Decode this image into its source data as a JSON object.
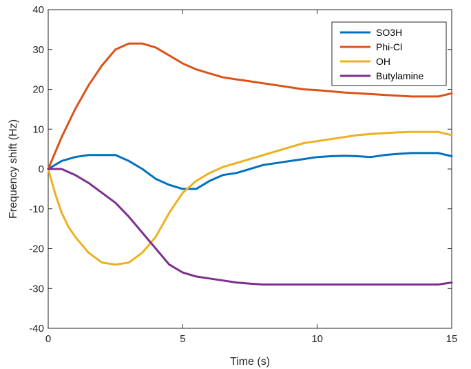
{
  "chart_data": {
    "type": "line",
    "title": "",
    "xlabel": "Time (s)",
    "ylabel": "Frequency shift (Hz)",
    "xlim": [
      0,
      15
    ],
    "ylim": [
      -40,
      40
    ],
    "xticks": [
      0,
      5,
      10,
      15
    ],
    "xtick_labels": [
      "0",
      "5",
      "10",
      "15"
    ],
    "yticks": [
      -40,
      -30,
      -20,
      -10,
      0,
      10,
      20,
      30,
      40
    ],
    "ytick_labels": [
      "-40",
      "-30",
      "-20",
      "-10",
      "0",
      "10",
      "20",
      "30",
      "40"
    ],
    "grid": false,
    "legend_position": "top-right",
    "series": [
      {
        "name": "SO3H",
        "color": "#0072BD",
        "x": [
          0,
          0.5,
          1,
          1.5,
          2,
          2.5,
          3,
          3.5,
          4,
          4.5,
          5,
          5.5,
          6,
          6.5,
          7,
          7.5,
          8,
          8.5,
          9,
          9.5,
          10,
          10.5,
          11,
          11.5,
          12,
          12.5,
          13,
          13.5,
          14,
          14.5,
          15
        ],
        "y": [
          0,
          2,
          3,
          3.5,
          3.5,
          3.5,
          2,
          0,
          -2.5,
          -4,
          -5,
          -5,
          -3,
          -1.5,
          -1,
          0,
          1,
          1.5,
          2,
          2.5,
          3,
          3.2,
          3.3,
          3.2,
          3,
          3.5,
          3.8,
          4,
          4,
          4,
          3.2
        ]
      },
      {
        "name": "Phi-Cl",
        "color": "#D95319",
        "x": [
          0,
          0.5,
          1,
          1.5,
          2,
          2.5,
          3,
          3.5,
          4,
          4.5,
          5,
          5.5,
          6,
          6.5,
          7,
          7.5,
          8,
          8.5,
          9,
          9.5,
          10,
          10.5,
          11,
          11.5,
          12,
          12.5,
          13,
          13.5,
          14,
          14.5,
          15
        ],
        "y": [
          0,
          8,
          15,
          21,
          26,
          30,
          31.5,
          31.5,
          30.5,
          28.5,
          26.5,
          25,
          24,
          23,
          22.5,
          22,
          21.5,
          21,
          20.5,
          20,
          19.8,
          19.5,
          19.2,
          19,
          18.8,
          18.6,
          18.4,
          18.2,
          18.2,
          18.2,
          19
        ]
      },
      {
        "name": "OH",
        "color": "#EDB120",
        "x": [
          0,
          0.25,
          0.5,
          0.75,
          1,
          1.5,
          2,
          2.5,
          3,
          3.5,
          4,
          4.5,
          5,
          5.5,
          6,
          6.5,
          7,
          7.5,
          8,
          8.5,
          9,
          9.5,
          10,
          10.5,
          11,
          11.5,
          12,
          12.5,
          13,
          13.5,
          14,
          14.5,
          15
        ],
        "y": [
          0,
          -6,
          -11,
          -14.5,
          -17,
          -21,
          -23.5,
          -24,
          -23.5,
          -21,
          -17,
          -11,
          -6,
          -3,
          -1,
          0.5,
          1.5,
          2.5,
          3.5,
          4.5,
          5.5,
          6.5,
          7,
          7.5,
          8,
          8.5,
          8.8,
          9,
          9.2,
          9.3,
          9.3,
          9.3,
          8.5
        ]
      },
      {
        "name": "Butylamine",
        "color": "#7E2F8E",
        "x": [
          0,
          0.5,
          1,
          1.5,
          2,
          2.5,
          3,
          3.5,
          4,
          4.5,
          5,
          5.5,
          6,
          6.5,
          7,
          7.5,
          8,
          8.5,
          9,
          9.5,
          10,
          10.5,
          11,
          11.5,
          12,
          12.5,
          13,
          13.5,
          14,
          14.5,
          15
        ],
        "y": [
          0,
          0,
          -1.5,
          -3.5,
          -6,
          -8.5,
          -12,
          -16,
          -20,
          -24,
          -26,
          -27,
          -27.5,
          -28,
          -28.5,
          -28.8,
          -29,
          -29,
          -29,
          -29,
          -29,
          -29,
          -29,
          -29,
          -29,
          -29,
          -29,
          -29,
          -29,
          -29,
          -28.5
        ]
      }
    ]
  }
}
